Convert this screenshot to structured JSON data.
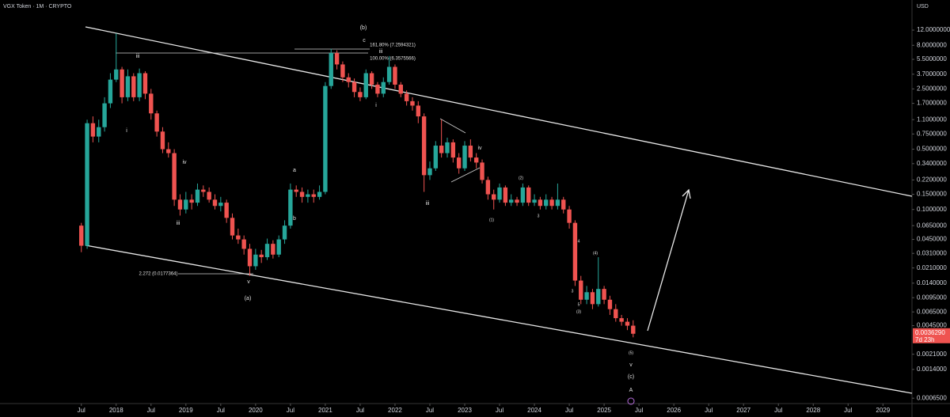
{
  "chart_data": {
    "type": "candlestick",
    "title": "VGX Token · 1M · CRYPTO",
    "currency": "USD",
    "up_color": "#26a69a",
    "down_color": "#ef5350",
    "log_scale": true,
    "x": [
      "2017-07",
      "2017-08",
      "2017-09",
      "2017-10",
      "2017-11",
      "2017-12",
      "2018-01",
      "2018-02",
      "2018-03",
      "2018-04",
      "2018-05",
      "2018-06",
      "2018-07",
      "2018-08",
      "2018-09",
      "2018-10",
      "2018-11",
      "2018-12",
      "2019-01",
      "2019-02",
      "2019-03",
      "2019-04",
      "2019-05",
      "2019-06",
      "2019-07",
      "2019-08",
      "2019-09",
      "2019-10",
      "2019-11",
      "2019-12",
      "2020-01",
      "2020-02",
      "2020-03",
      "2020-04",
      "2020-05",
      "2020-06",
      "2020-07",
      "2020-08",
      "2020-09",
      "2020-10",
      "2020-11",
      "2020-12",
      "2021-01",
      "2021-02",
      "2021-03",
      "2021-04",
      "2021-05",
      "2021-06",
      "2021-07",
      "2021-08",
      "2021-09",
      "2021-10",
      "2021-11",
      "2021-12",
      "2022-01",
      "2022-02",
      "2022-03",
      "2022-04",
      "2022-05",
      "2022-06",
      "2022-07",
      "2022-08",
      "2022-09",
      "2022-10",
      "2022-11",
      "2022-12",
      "2023-01",
      "2023-02",
      "2023-03",
      "2023-04",
      "2023-05",
      "2023-06",
      "2023-07",
      "2023-08",
      "2023-09",
      "2023-10",
      "2023-11",
      "2023-12",
      "2024-01",
      "2024-02",
      "2024-03",
      "2024-04",
      "2024-05",
      "2024-06",
      "2024-07",
      "2024-08",
      "2024-09",
      "2024-10",
      "2024-11",
      "2024-12",
      "2025-01",
      "2025-02",
      "2025-03",
      "2025-04",
      "2025-05",
      "2025-06"
    ],
    "open": [
      0.065,
      0.038,
      1.0,
      0.7,
      0.9,
      1.7,
      3.2,
      4.2,
      2.0,
      3.5,
      2.0,
      3.8,
      2.2,
      1.3,
      0.8,
      0.5,
      0.45,
      0.13,
      0.1,
      0.13,
      0.12,
      0.17,
      0.16,
      0.13,
      0.11,
      0.12,
      0.08,
      0.05,
      0.045,
      0.035,
      0.022,
      0.03,
      0.028,
      0.04,
      0.03,
      0.045,
      0.065,
      0.17,
      0.16,
      0.14,
      0.15,
      0.14,
      0.16,
      2.7,
      6.5,
      4.8,
      3.4,
      3.0,
      2.3,
      2.0,
      3.8,
      2.8,
      2.2,
      3.0,
      4.5,
      2.8,
      2.2,
      1.8,
      1.6,
      1.2,
      0.25,
      0.3,
      0.55,
      0.45,
      0.6,
      0.4,
      0.3,
      0.55,
      0.4,
      0.35,
      0.22,
      0.15,
      0.13,
      0.18,
      0.12,
      0.13,
      0.12,
      0.18,
      0.12,
      0.13,
      0.11,
      0.13,
      0.11,
      0.13,
      0.1,
      0.07,
      0.015,
      0.009,
      0.011,
      0.008,
      0.012,
      0.009,
      0.007,
      0.0055,
      0.005,
      0.0045
    ],
    "high": [
      0.07,
      1.1,
      1.2,
      1.1,
      2.0,
      3.8,
      11,
      4.5,
      4.2,
      3.8,
      4.3,
      4.0,
      2.5,
      1.4,
      0.9,
      0.6,
      0.5,
      0.15,
      0.16,
      0.15,
      0.2,
      0.19,
      0.18,
      0.15,
      0.14,
      0.13,
      0.09,
      0.06,
      0.05,
      0.04,
      0.035,
      0.034,
      0.046,
      0.044,
      0.05,
      0.075,
      0.2,
      0.19,
      0.18,
      0.17,
      0.17,
      0.19,
      3.0,
      7.3,
      7.0,
      5.2,
      3.8,
      3.3,
      2.6,
      4.2,
      4.0,
      3.0,
      3.4,
      6.0,
      4.8,
      3.0,
      2.4,
      2.0,
      1.8,
      1.3,
      0.36,
      0.62,
      1.1,
      0.68,
      0.65,
      0.45,
      0.62,
      0.65,
      0.45,
      0.38,
      0.24,
      0.17,
      0.2,
      0.19,
      0.15,
      0.14,
      0.2,
      0.19,
      0.15,
      0.14,
      0.15,
      0.14,
      0.2,
      0.14,
      0.11,
      0.075,
      0.017,
      0.013,
      0.012,
      0.028,
      0.013,
      0.01,
      0.008,
      0.006,
      0.0055,
      0.0052
    ],
    "low": [
      0.032,
      0.035,
      0.6,
      0.6,
      0.8,
      1.5,
      3.0,
      1.7,
      1.8,
      1.8,
      1.8,
      1.9,
      1.1,
      0.7,
      0.45,
      0.4,
      0.11,
      0.085,
      0.09,
      0.1,
      0.11,
      0.14,
      0.12,
      0.1,
      0.095,
      0.07,
      0.045,
      0.04,
      0.03,
      0.017,
      0.02,
      0.024,
      0.026,
      0.027,
      0.028,
      0.04,
      0.06,
      0.14,
      0.12,
      0.12,
      0.12,
      0.13,
      0.15,
      2.5,
      4.2,
      3.0,
      2.6,
      2.0,
      1.8,
      1.9,
      2.5,
      2.0,
      2.0,
      2.8,
      2.5,
      2.0,
      1.6,
      1.4,
      1.0,
      0.16,
      0.22,
      0.28,
      0.4,
      0.4,
      0.35,
      0.26,
      0.28,
      0.36,
      0.3,
      0.2,
      0.13,
      0.1,
      0.12,
      0.11,
      0.11,
      0.11,
      0.11,
      0.11,
      0.11,
      0.1,
      0.1,
      0.1,
      0.1,
      0.09,
      0.06,
      0.013,
      0.008,
      0.008,
      0.007,
      0.0075,
      0.008,
      0.006,
      0.005,
      0.0045,
      0.004,
      0.0033
    ],
    "close": [
      0.038,
      1.0,
      0.7,
      0.9,
      1.7,
      3.2,
      4.2,
      2.0,
      3.5,
      2.0,
      3.8,
      2.2,
      1.3,
      0.8,
      0.5,
      0.45,
      0.13,
      0.1,
      0.13,
      0.12,
      0.17,
      0.16,
      0.13,
      0.11,
      0.12,
      0.08,
      0.05,
      0.045,
      0.035,
      0.022,
      0.03,
      0.028,
      0.04,
      0.03,
      0.045,
      0.065,
      0.17,
      0.16,
      0.14,
      0.15,
      0.14,
      0.16,
      2.7,
      6.5,
      4.8,
      3.4,
      3.0,
      2.3,
      2.0,
      3.8,
      2.8,
      2.2,
      3.0,
      4.5,
      2.8,
      2.2,
      1.8,
      1.6,
      1.2,
      0.25,
      0.3,
      0.55,
      0.45,
      0.6,
      0.4,
      0.3,
      0.55,
      0.4,
      0.35,
      0.22,
      0.15,
      0.13,
      0.18,
      0.12,
      0.13,
      0.12,
      0.18,
      0.12,
      0.13,
      0.11,
      0.13,
      0.11,
      0.13,
      0.1,
      0.07,
      0.015,
      0.009,
      0.011,
      0.008,
      0.012,
      0.009,
      0.007,
      0.0055,
      0.005,
      0.0045,
      0.003629
    ],
    "last_close_label": "0.0036290",
    "countdown": "7d 23h",
    "xlim": [
      "2016-05",
      "2029-06"
    ],
    "xticks": [
      {
        "value": "2017-07",
        "label": "Jul"
      },
      {
        "value": "2018-01",
        "label": "2018"
      },
      {
        "value": "2018-07",
        "label": "Jul"
      },
      {
        "value": "2019-01",
        "label": "2019"
      },
      {
        "value": "2019-07",
        "label": "Jul"
      },
      {
        "value": "2020-01",
        "label": "2020"
      },
      {
        "value": "2020-07",
        "label": "Jul"
      },
      {
        "value": "2021-01",
        "label": "2021"
      },
      {
        "value": "2021-07",
        "label": "Jul"
      },
      {
        "value": "2022-01",
        "label": "2022"
      },
      {
        "value": "2022-07",
        "label": "Jul"
      },
      {
        "value": "2023-01",
        "label": "2023"
      },
      {
        "value": "2023-07",
        "label": "Jul"
      },
      {
        "value": "2024-01",
        "label": "2024"
      },
      {
        "value": "2024-07",
        "label": "Jul"
      },
      {
        "value": "2025-01",
        "label": "2025"
      },
      {
        "value": "2025-07",
        "label": "Jul"
      },
      {
        "value": "2026-01",
        "label": "2026"
      },
      {
        "value": "2026-07",
        "label": "Jul"
      },
      {
        "value": "2027-01",
        "label": "2027"
      },
      {
        "value": "2027-07",
        "label": "Jul"
      },
      {
        "value": "2028-01",
        "label": "2028"
      },
      {
        "value": "2028-07",
        "label": "Jul"
      },
      {
        "value": "2029-01",
        "label": "2029"
      }
    ],
    "ylim": [
      0.00054,
      26.8
    ],
    "yticks": [
      {
        "value": 12,
        "label": "12.0000000"
      },
      {
        "value": 8,
        "label": "8.0000000"
      },
      {
        "value": 5.5,
        "label": "5.5000000"
      },
      {
        "value": 3.7,
        "label": "3.7000000"
      },
      {
        "value": 2.5,
        "label": "2.5000000"
      },
      {
        "value": 1.7,
        "label": "1.7000000"
      },
      {
        "value": 1.1,
        "label": "1.1000000"
      },
      {
        "value": 0.75,
        "label": "0.7500000"
      },
      {
        "value": 0.5,
        "label": "0.5000000"
      },
      {
        "value": 0.34,
        "label": "0.3400000"
      },
      {
        "value": 0.22,
        "label": "0.2200000"
      },
      {
        "value": 0.15,
        "label": "0.1500000"
      },
      {
        "value": 0.1,
        "label": "0.1000000"
      },
      {
        "value": 0.065,
        "label": "0.0650000"
      },
      {
        "value": 0.045,
        "label": "0.0450000"
      },
      {
        "value": 0.031,
        "label": "0.0310000"
      },
      {
        "value": 0.021,
        "label": "0.0210000"
      },
      {
        "value": 0.014,
        "label": "0.0140000"
      },
      {
        "value": 0.0095,
        "label": "0.0095000"
      },
      {
        "value": 0.0065,
        "label": "0.0065000"
      },
      {
        "value": 0.0045,
        "label": "0.0045000"
      },
      {
        "value": 0.0021,
        "label": "0.0021000"
      },
      {
        "value": 0.0014,
        "label": "0.0014000"
      },
      {
        "value": 0.00065,
        "label": "0.0006500"
      }
    ],
    "annotations": [
      "(b)",
      "c",
      "161.80% (7.2594321)",
      "iii",
      "100.00% (6.3575566)",
      "iii",
      "i",
      "iv",
      "iii",
      "v",
      "(a)",
      "2.272 (0.0177364)",
      "a",
      "b",
      "i",
      "iii",
      "iv",
      "(1)",
      "(2)",
      "3",
      "4",
      "3",
      "5",
      "(3)",
      "(4)",
      "(5)",
      "v",
      "(c)",
      "A"
    ]
  }
}
